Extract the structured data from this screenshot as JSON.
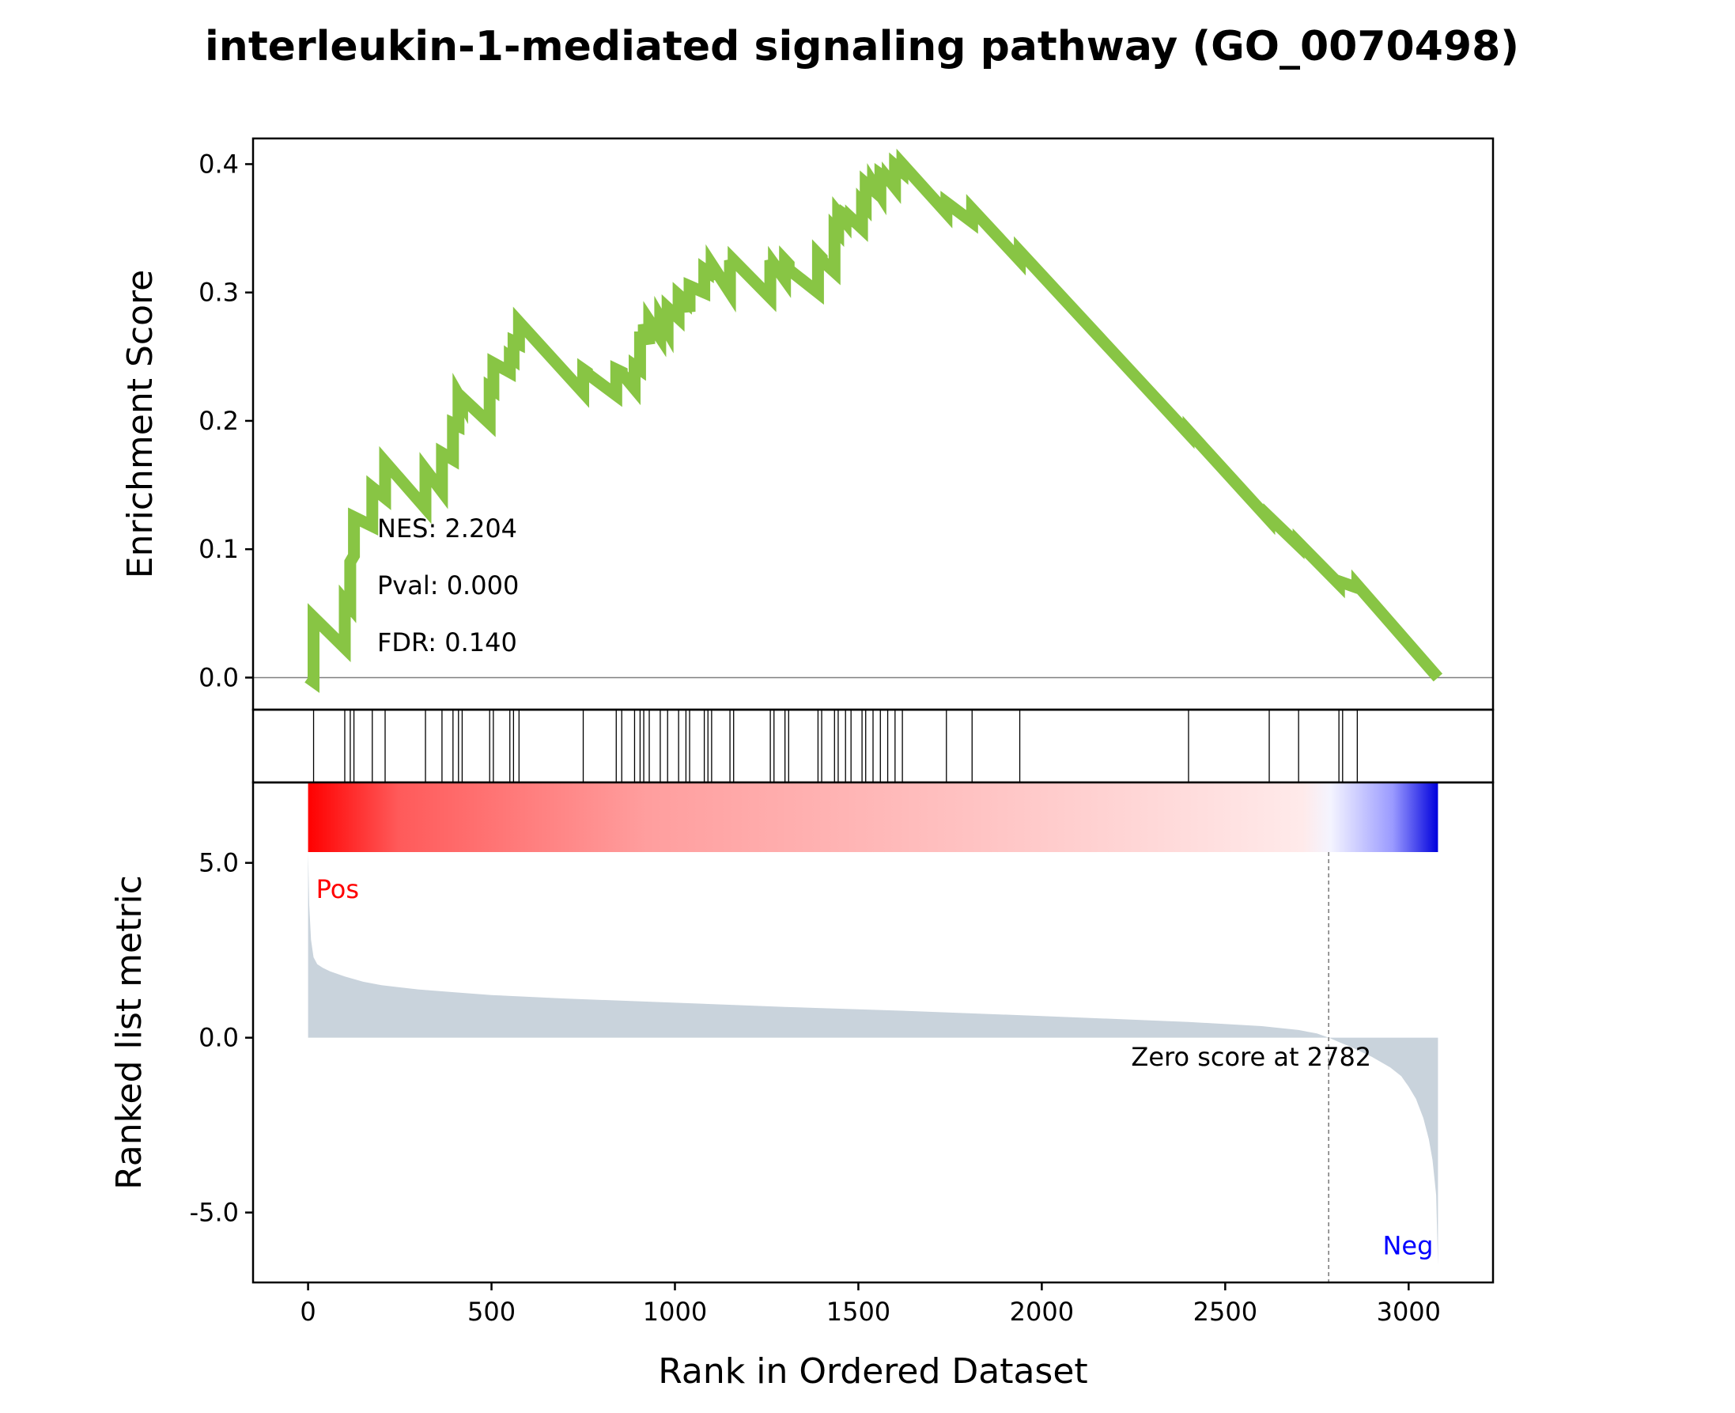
{
  "title": "interleukin-1-mediated signaling pathway (GO_0070498)",
  "colors": {
    "es_line": "#88c544",
    "metric_fill": "#c9d3dc",
    "pos_label": "#ff0000",
    "neg_label": "#0000ff",
    "frame": "#000000",
    "zero_line": "#808080"
  },
  "chart_data": [
    {
      "type": "line",
      "panel": "enrichment-score",
      "ylabel": "Enrichment Score",
      "xlim": [
        -150,
        3230
      ],
      "ylim": [
        -0.025,
        0.42
      ],
      "yticks": [
        0.0,
        0.1,
        0.2,
        0.3,
        0.4
      ],
      "ytick_labels": [
        "0.0",
        "0.1",
        "0.2",
        "0.3",
        "0.4"
      ],
      "stats": {
        "nes": "NES: 2.204",
        "pval": "Pval: 0.000",
        "fdr": "FDR: 0.140"
      },
      "series": [
        {
          "x": [
            0,
            15,
            15,
            100,
            100,
            115,
            115,
            125,
            125,
            175,
            175,
            210,
            210,
            320,
            320,
            365,
            365,
            395,
            395,
            410,
            410,
            420,
            420,
            495,
            495,
            505,
            505,
            550,
            550,
            560,
            560,
            575,
            575,
            750,
            750,
            760,
            760,
            840,
            840,
            855,
            855,
            890,
            890,
            905,
            905,
            915,
            915,
            930,
            930,
            960,
            960,
            980,
            980,
            1010,
            1010,
            1030,
            1030,
            1040,
            1040,
            1080,
            1080,
            1090,
            1090,
            1100,
            1100,
            1150,
            1150,
            1160,
            1160,
            1260,
            1260,
            1270,
            1270,
            1300,
            1300,
            1310,
            1310,
            1390,
            1390,
            1400,
            1400,
            1435,
            1435,
            1445,
            1445,
            1465,
            1465,
            1480,
            1480,
            1510,
            1510,
            1520,
            1520,
            1540,
            1540,
            1560,
            1560,
            1580,
            1580,
            1600,
            1600,
            1620,
            1620,
            1740,
            1740,
            1810,
            1810,
            1940,
            1940,
            2400,
            2400,
            2620,
            2620,
            2700,
            2700,
            2810,
            2810,
            2860,
            2860,
            3080
          ],
          "y": [
            0.0,
            -0.003,
            0.047,
            0.023,
            0.06,
            0.055,
            0.09,
            0.095,
            0.125,
            0.118,
            0.148,
            0.14,
            0.168,
            0.132,
            0.162,
            0.145,
            0.175,
            0.17,
            0.198,
            0.196,
            0.22,
            0.215,
            0.218,
            0.198,
            0.226,
            0.224,
            0.245,
            0.238,
            0.25,
            0.248,
            0.262,
            0.26,
            0.277,
            0.222,
            0.24,
            0.238,
            0.237,
            0.22,
            0.24,
            0.238,
            0.237,
            0.225,
            0.243,
            0.24,
            0.265,
            0.265,
            0.275,
            0.26,
            0.278,
            0.265,
            0.28,
            0.27,
            0.288,
            0.28,
            0.298,
            0.293,
            0.3,
            0.285,
            0.305,
            0.3,
            0.318,
            0.316,
            0.318,
            0.31,
            0.322,
            0.3,
            0.325,
            0.318,
            0.325,
            0.296,
            0.325,
            0.318,
            0.322,
            0.31,
            0.325,
            0.322,
            0.318,
            0.3,
            0.33,
            0.327,
            0.325,
            0.316,
            0.35,
            0.347,
            0.362,
            0.355,
            0.36,
            0.357,
            0.358,
            0.35,
            0.37,
            0.367,
            0.385,
            0.38,
            0.385,
            0.376,
            0.392,
            0.388,
            0.389,
            0.382,
            0.399,
            0.394,
            0.4,
            0.362,
            0.37,
            0.355,
            0.365,
            0.325,
            0.332,
            0.19,
            0.192,
            0.123,
            0.125,
            0.103,
            0.105,
            0.073,
            0.075,
            0.07,
            0.072,
            0.0
          ]
        }
      ]
    },
    {
      "type": "hits",
      "panel": "gene-set-hits",
      "x": [
        15,
        100,
        115,
        125,
        175,
        210,
        320,
        365,
        395,
        410,
        420,
        495,
        505,
        550,
        560,
        575,
        750,
        840,
        855,
        890,
        905,
        915,
        930,
        960,
        980,
        1010,
        1030,
        1040,
        1080,
        1090,
        1100,
        1150,
        1160,
        1260,
        1270,
        1300,
        1310,
        1390,
        1400,
        1435,
        1445,
        1465,
        1480,
        1510,
        1520,
        1540,
        1560,
        1580,
        1600,
        1620,
        1740,
        1810,
        1940,
        2400,
        2620,
        2700,
        2810,
        2820,
        2860
      ]
    },
    {
      "type": "area",
      "panel": "ranked-list-metric",
      "ylabel": "Ranked list metric",
      "xlabel": "Rank in Ordered Dataset",
      "xlim": [
        -150,
        3230
      ],
      "ylim": [
        -7.0,
        7.3
      ],
      "xticks": [
        0,
        500,
        1000,
        1500,
        2000,
        2500,
        3000
      ],
      "xtick_labels": [
        "0",
        "500",
        "1000",
        "1500",
        "2000",
        "2500",
        "3000"
      ],
      "yticks": [
        5.0,
        0.0,
        -5.0
      ],
      "ytick_labels": [
        "5.0",
        "0.0",
        "-5.0"
      ],
      "pos_label": "Pos",
      "neg_label": "Neg",
      "zero_score_rank": 2782,
      "zero_score_label": "Zero score at 2782",
      "series": [
        {
          "x": [
            0,
            3,
            8,
            15,
            25,
            40,
            60,
            100,
            150,
            200,
            300,
            400,
            500,
            700,
            1000,
            1300,
            1600,
            2000,
            2400,
            2600,
            2700,
            2750,
            2782,
            2850,
            2900,
            2950,
            2980,
            3000,
            3020,
            3040,
            3055,
            3065,
            3075,
            3080
          ],
          "y": [
            5.3,
            3.8,
            2.8,
            2.3,
            2.1,
            2.0,
            1.9,
            1.75,
            1.6,
            1.5,
            1.38,
            1.3,
            1.22,
            1.12,
            1.0,
            0.88,
            0.78,
            0.62,
            0.45,
            0.33,
            0.22,
            0.12,
            0.0,
            -0.3,
            -0.55,
            -0.85,
            -1.1,
            -1.4,
            -1.75,
            -2.3,
            -2.9,
            -3.5,
            -4.5,
            -6.5
          ]
        }
      ]
    }
  ]
}
